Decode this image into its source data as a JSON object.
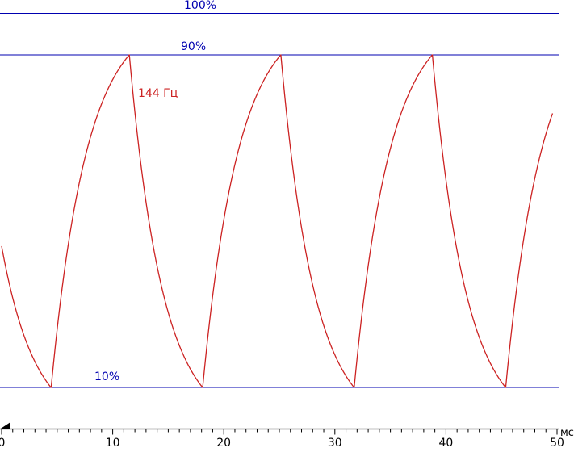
{
  "chart_data": {
    "type": "line",
    "title": "",
    "xlabel": "мс",
    "ylabel": "",
    "xlim": [
      0,
      50
    ],
    "x_ticks": [
      0,
      10,
      20,
      30,
      40,
      50
    ],
    "x_minor_step_ms": 1,
    "grid": "off",
    "legend": "none",
    "ref_lines": [
      {
        "label": "100%",
        "value_percent": 100
      },
      {
        "label": "90%",
        "value_percent": 90
      },
      {
        "label": "10%",
        "value_percent": 10
      }
    ],
    "curve_label": "144 Гц",
    "waveform": {
      "description": "exponential charge/discharge relaxation oscillation bounded by the 10% and 90% reference levels",
      "start_percent": 44,
      "low_switch_percent": 10,
      "high_switch_percent": 90,
      "charge_asymptote_percent": 100,
      "discharge_asymptote_percent": 0,
      "tau_rise_ms": 3.2,
      "tau_fall_ms": 3.0,
      "approx_period_ms": 13.7,
      "approx_peak_times_ms": [
        11.3,
        25.0,
        38.7
      ],
      "approx_trough_times_ms": [
        4.4,
        18.0,
        31.6,
        45.3
      ]
    },
    "colors": {
      "curve": "#cc2222",
      "ref_lines": "#0000b0",
      "axis": "#000000"
    }
  }
}
